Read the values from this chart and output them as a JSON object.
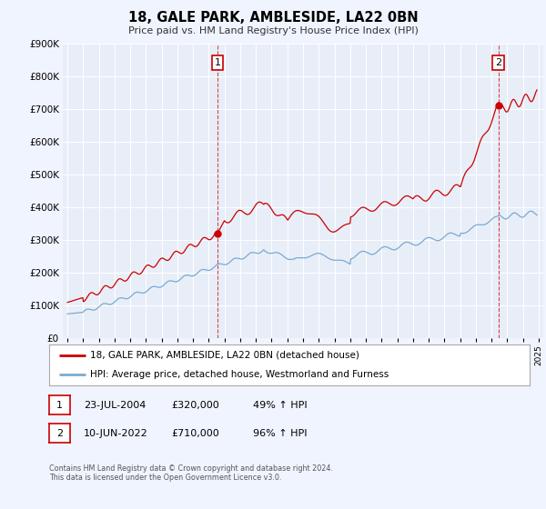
{
  "title": "18, GALE PARK, AMBLESIDE, LA22 0BN",
  "subtitle": "Price paid vs. HM Land Registry's House Price Index (HPI)",
  "legend_line1": "18, GALE PARK, AMBLESIDE, LA22 0BN (detached house)",
  "legend_line2": "HPI: Average price, detached house, Westmorland and Furness",
  "annotation1_date": "23-JUL-2004",
  "annotation1_price": "£320,000",
  "annotation1_hpi": "49% ↑ HPI",
  "annotation2_date": "10-JUN-2022",
  "annotation2_price": "£710,000",
  "annotation2_hpi": "96% ↑ HPI",
  "footnote1": "Contains HM Land Registry data © Crown copyright and database right 2024.",
  "footnote2": "This data is licensed under the Open Government Licence v3.0.",
  "red_color": "#cc0000",
  "blue_color": "#7aaad0",
  "background_color": "#f0f4ff",
  "plot_bg_color": "#e8eef8",
  "grid_color": "#ffffff",
  "ylim": [
    0,
    900000
  ],
  "ytick_step": 100000,
  "xstart": 1995,
  "xend": 2025,
  "sale1_year": 2004.55,
  "sale1_price": 320000,
  "sale2_year": 2022.44,
  "sale2_price": 710000
}
